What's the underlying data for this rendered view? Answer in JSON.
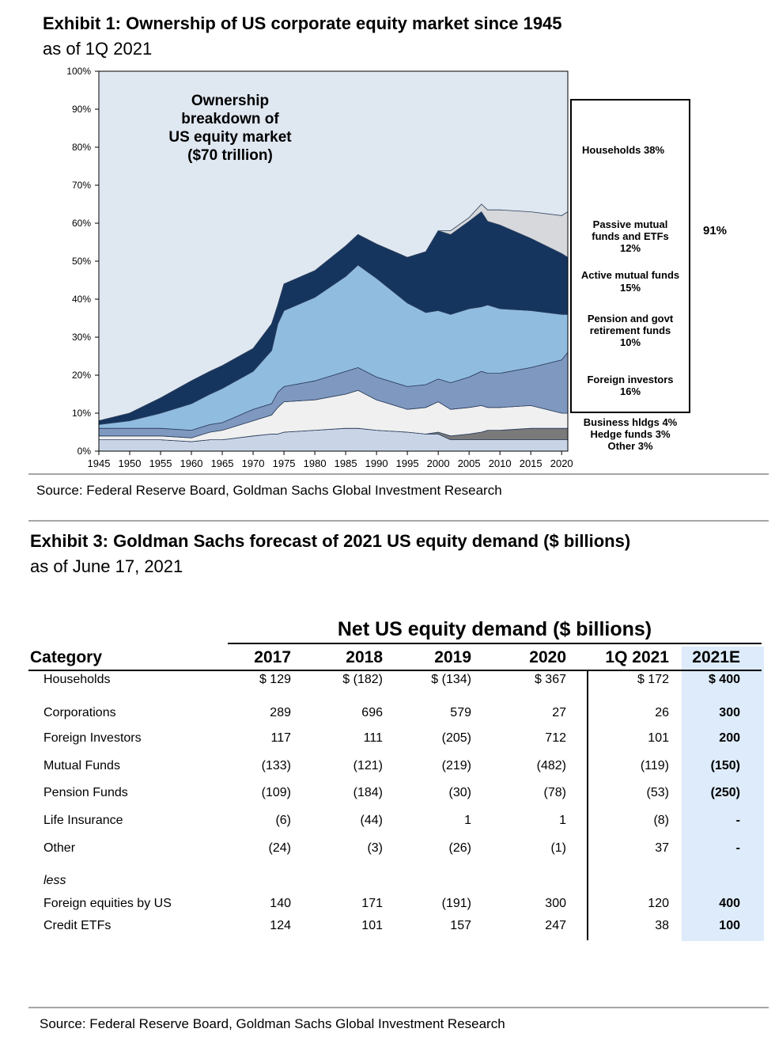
{
  "exhibit1": {
    "title": "Exhibit 1: Ownership of US corporate equity market since 1945",
    "subtitle": "as of 1Q 2021",
    "source": "Source: Federal Reserve Board, Goldman Sachs Global Investment Research"
  },
  "exhibit3": {
    "title": "Exhibit 3: Goldman Sachs forecast of 2021 US equity demand ($ billions)",
    "subtitle": "as of June 17, 2021",
    "source": "Source: Federal Reserve Board, Goldman Sachs Global Investment Research",
    "table": {
      "super_header": "Net US equity demand ($ billions)",
      "category_header": "Category",
      "columns": [
        "2017",
        "2018",
        "2019",
        "2020",
        "1Q 2021",
        "2021E"
      ],
      "less_label": "less",
      "rows": [
        {
          "label": "Households",
          "values": [
            "$ 129",
            "$ (182)",
            "$ (134)",
            "$ 367",
            "$ 172",
            "$ 400"
          ]
        },
        {
          "label": "Corporations",
          "values": [
            "289",
            "696",
            "579",
            "27",
            "26",
            "300"
          ]
        },
        {
          "label": "Foreign Investors",
          "values": [
            "117",
            "111",
            "(205)",
            "712",
            "101",
            "200"
          ]
        },
        {
          "label": "Mutual Funds",
          "values": [
            "(133)",
            "(121)",
            "(219)",
            "(482)",
            "(119)",
            "(150)"
          ]
        },
        {
          "label": "Pension Funds",
          "values": [
            "(109)",
            "(184)",
            "(30)",
            "(78)",
            "(53)",
            "(250)"
          ]
        },
        {
          "label": "Life Insurance",
          "values": [
            "(6)",
            "(44)",
            "1",
            "1",
            "(8)",
            "-"
          ]
        },
        {
          "label": "Other",
          "values": [
            "(24)",
            "(3)",
            "(26)",
            "(1)",
            "37",
            "-"
          ]
        },
        {
          "label": "Foreign equities by US",
          "values": [
            "140",
            "171",
            "(191)",
            "300",
            "120",
            "400"
          ]
        },
        {
          "label": "Credit ETFs",
          "values": [
            "124",
            "101",
            "157",
            "247",
            "38",
            "100"
          ]
        }
      ]
    }
  },
  "chart_data": {
    "type": "area",
    "stacked": true,
    "title": "Exhibit 1: Ownership of US corporate equity market since 1945",
    "annotation": "Ownership breakdown of US equity market ($70 trillion)",
    "annotation_lines": [
      "Ownership",
      "breakdown  of",
      "US equity market",
      "($70 trillion)"
    ],
    "xlabel": "",
    "ylabel": "",
    "xlim": [
      1945,
      2021
    ],
    "ylim": [
      0,
      100
    ],
    "x_ticks": [
      "1945",
      "1950",
      "1955",
      "1960",
      "1965",
      "1970",
      "1975",
      "1980",
      "1985",
      "1990",
      "1995",
      "2000",
      "2005",
      "2010",
      "2015",
      "2020"
    ],
    "y_ticks": [
      "0%",
      "10%",
      "20%",
      "30%",
      "40%",
      "50%",
      "60%",
      "70%",
      "80%",
      "90%",
      "100%"
    ],
    "x": [
      1945,
      1950,
      1955,
      1960,
      1963,
      1965,
      1970,
      1973,
      1974,
      1975,
      1980,
      1985,
      1987,
      1990,
      1995,
      1998,
      2000,
      2002,
      2005,
      2007,
      2008,
      2010,
      2015,
      2020,
      2021
    ],
    "series": [
      {
        "name": "Other",
        "color": "#c9d5e6",
        "values": [
          3,
          3,
          3,
          2.5,
          3,
          3,
          4,
          4.5,
          4.5,
          5,
          5.5,
          6,
          6,
          5.5,
          5,
          4.5,
          4.5,
          3,
          3,
          3,
          3,
          3,
          3,
          3,
          3
        ]
      },
      {
        "name": "Hedge funds",
        "color": "#7a7a7a",
        "values": [
          0,
          0,
          0,
          0,
          0,
          0,
          0,
          0,
          0,
          0,
          0,
          0,
          0,
          0,
          0,
          0,
          0.5,
          1,
          1.5,
          2,
          2.5,
          2.5,
          3,
          3,
          3
        ]
      },
      {
        "name": "Business hldgs",
        "color": "#f0f0f0",
        "values": [
          1,
          1,
          1,
          1,
          2,
          2.5,
          4,
          5,
          7,
          8,
          8,
          9,
          10,
          8,
          6,
          7,
          8,
          7,
          7,
          7,
          6,
          6,
          6,
          4,
          4
        ]
      },
      {
        "name": "Foreign investors",
        "color": "#7f98bf",
        "values": [
          2,
          2,
          2,
          2,
          2,
          2,
          3,
          3,
          4,
          4,
          5,
          6,
          6,
          6,
          6,
          6,
          6,
          7,
          8,
          9,
          9,
          9,
          10,
          14,
          16
        ]
      },
      {
        "name": "Pension and govt retirement funds",
        "color": "#90bce0",
        "values": [
          1,
          2,
          4,
          7,
          8,
          9,
          10,
          14,
          18,
          20,
          22,
          25,
          27,
          26,
          22,
          19,
          18,
          18,
          18,
          17,
          18,
          17,
          15,
          12,
          10
        ]
      },
      {
        "name": "Active mutual funds",
        "color": "#15355e",
        "values": [
          1,
          2,
          4,
          6,
          6,
          6,
          6,
          7,
          5,
          7,
          7,
          8,
          8,
          9,
          12,
          16,
          21,
          21,
          23,
          25,
          22,
          22,
          19,
          16,
          15
        ]
      },
      {
        "name": "Passive mutual funds and ETFs",
        "color": "#d6d8dc",
        "values": [
          0,
          0,
          0,
          0,
          0,
          0,
          0,
          0,
          0,
          0,
          0,
          0,
          0,
          0,
          0,
          0,
          0,
          1,
          1,
          2,
          3,
          4,
          7,
          10,
          12
        ]
      }
    ],
    "legend": [
      "Households 38%",
      "Passive mutual funds and ETFs 12%",
      "Active mutual funds 15%",
      "Pension and govt retirement funds 10%",
      "Foreign investors 16%",
      "Business hldgs 4%",
      "Hedge funds 3%",
      "Other 3%"
    ],
    "legend_lines": {
      "households": "Households 38%",
      "passive": [
        "Passive mutual",
        "funds and ETFs",
        "12%"
      ],
      "active": [
        "Active mutual funds",
        "15%"
      ],
      "pension": [
        "Pension and govt",
        "retirement funds",
        "10%"
      ],
      "foreign": [
        "Foreign investors",
        "16%"
      ],
      "bottom": [
        "Business hldgs 4%",
        "Hedge funds 3%",
        "Other 3%"
      ]
    },
    "bracket_label": "91%",
    "background_color": "#dfe7f1"
  }
}
